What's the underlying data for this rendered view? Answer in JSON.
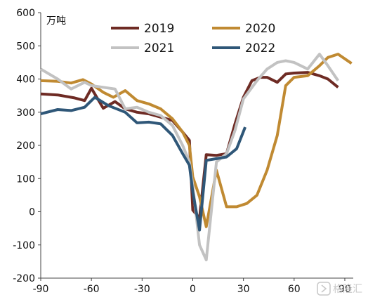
{
  "chart_data": {
    "type": "line",
    "ylabel": "万吨",
    "ylim": [
      -200,
      600
    ],
    "xlim": [
      -90,
      95
    ],
    "y_ticks": [
      "600",
      "500",
      "400",
      "300",
      "200",
      "100",
      "0",
      "-100",
      "-200"
    ],
    "x_ticks": [
      "-90",
      "-60",
      "-30",
      "0",
      "30",
      "60",
      "90"
    ],
    "grid": false,
    "legend_position": "top-right",
    "series": [
      {
        "name": "2019",
        "color": "#6e2b24",
        "x": [
          -90,
          -80,
          -70,
          -64,
          -60,
          -53,
          -46,
          -40,
          -33,
          -26,
          -19,
          -12,
          -6,
          -2,
          0,
          4,
          8,
          14,
          20,
          25,
          30,
          35,
          40,
          44,
          50,
          55,
          60,
          68,
          75,
          80,
          86
        ],
        "y": [
          355,
          352,
          343,
          335,
          372,
          312,
          332,
          310,
          300,
          295,
          285,
          275,
          240,
          215,
          5,
          -20,
          172,
          170,
          175,
          265,
          345,
          395,
          405,
          405,
          390,
          415,
          418,
          420,
          410,
          400,
          375
        ]
      },
      {
        "name": "2020",
        "color": "#c08a32",
        "x": [
          -90,
          -80,
          -72,
          -65,
          -60,
          -53,
          -47,
          -40,
          -33,
          -26,
          -19,
          -12,
          -6,
          -2,
          0,
          4,
          8,
          14,
          20,
          26,
          32,
          38,
          44,
          50,
          55,
          60,
          68,
          75,
          80,
          86,
          94
        ],
        "y": [
          395,
          393,
          388,
          398,
          385,
          360,
          345,
          365,
          335,
          325,
          310,
          280,
          240,
          200,
          105,
          45,
          -45,
          125,
          15,
          15,
          25,
          50,
          125,
          230,
          380,
          405,
          410,
          440,
          465,
          475,
          447
        ]
      },
      {
        "name": "2021",
        "color": "#c2c2c2",
        "x": [
          -90,
          -80,
          -72,
          -64,
          -60,
          -53,
          -46,
          -40,
          -33,
          -26,
          -19,
          -12,
          -6,
          -2,
          0,
          4,
          8,
          14,
          20,
          25,
          30,
          38,
          44,
          50,
          55,
          60,
          68,
          75,
          80,
          86
        ],
        "y": [
          430,
          400,
          370,
          390,
          380,
          375,
          370,
          310,
          315,
          300,
          290,
          260,
          200,
          150,
          80,
          -100,
          -145,
          150,
          175,
          245,
          340,
          395,
          430,
          450,
          455,
          450,
          430,
          475,
          440,
          395
        ]
      },
      {
        "name": "2022",
        "color": "#2f5778",
        "x": [
          -90,
          -80,
          -72,
          -64,
          -58,
          -50,
          -40,
          -33,
          -26,
          -19,
          -12,
          -6,
          -2,
          0,
          4,
          8,
          14,
          20,
          26,
          31
        ],
        "y": [
          295,
          308,
          305,
          315,
          345,
          320,
          300,
          268,
          270,
          265,
          230,
          175,
          140,
          60,
          -55,
          155,
          160,
          165,
          190,
          255
        ]
      }
    ]
  },
  "watermark": "格隆汇"
}
